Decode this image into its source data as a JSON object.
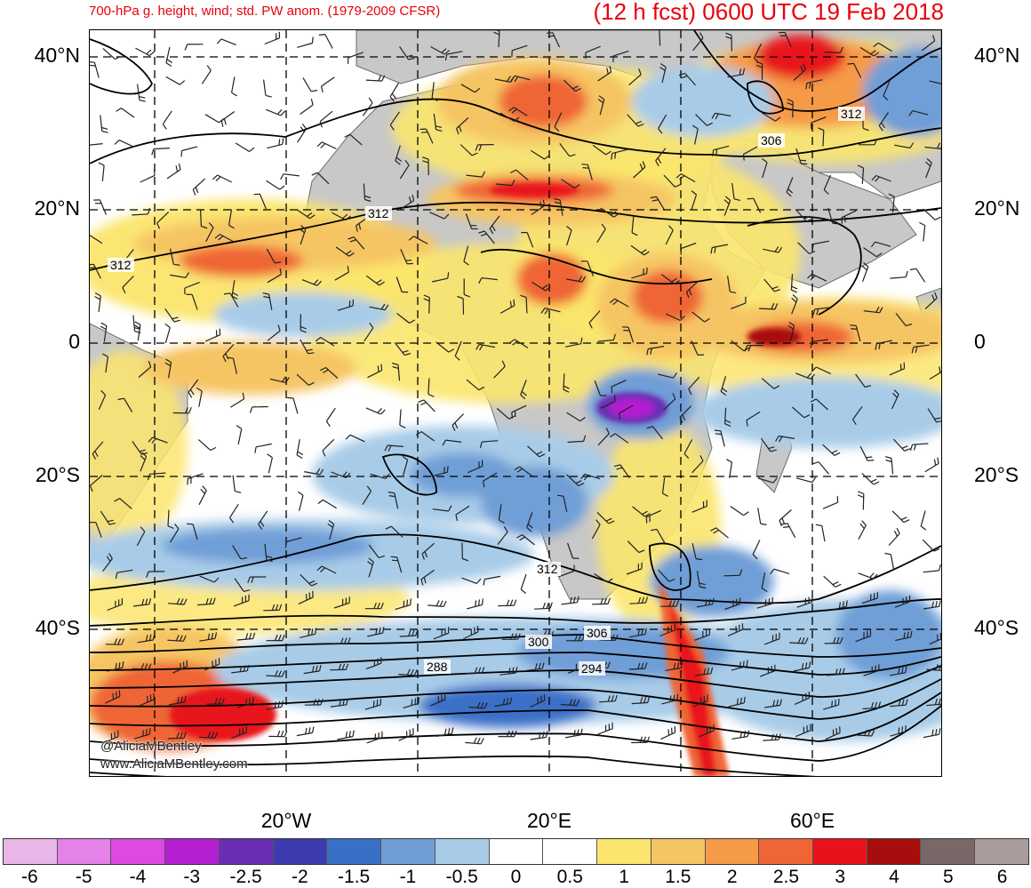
{
  "header": {
    "subtitle": "700-hPa g. height, wind; std. PW anom. (1979-2009 CFSR)",
    "title": "(12 h fcst) 0600 UTC 19 Feb 2018"
  },
  "axes": {
    "lat_labels": [
      "40°N",
      "20°N",
      "0",
      "20°S",
      "40°S"
    ],
    "lon_labels": [
      "20°W",
      "20°E",
      "60°E"
    ]
  },
  "contour_labels": [
    "312",
    "312",
    "312",
    "306",
    "312",
    "306",
    "300",
    "294",
    "288"
  ],
  "watermark": {
    "handle": "@AliciaMBentley",
    "site": "www.AliciaMBentley.com"
  },
  "colorbar": {
    "labels": [
      "-6",
      "-5",
      "-4",
      "-3",
      "-2.5",
      "-2",
      "-1.5",
      "-1",
      "-0.5",
      "0",
      "0.5",
      "1",
      "1.5",
      "2",
      "2.5",
      "3",
      "4",
      "5",
      "6"
    ],
    "colors": [
      "#e9b6e8",
      "#e482e8",
      "#dc4ae0",
      "#b41fd2",
      "#6a2db4",
      "#3c3cb0",
      "#3a6fc8",
      "#6f9ed7",
      "#a8cce8",
      "#ffffff",
      "#ffffff",
      "#fbe56c",
      "#f6c563",
      "#f59a47",
      "#ef6536",
      "#e8121c",
      "#a80d0d",
      "#7a6868",
      "#a89c9c"
    ]
  },
  "colors": {
    "title": "#e8000b",
    "land": "#c8c8c8",
    "ocean": "#ffffff",
    "contour": "#000000"
  }
}
